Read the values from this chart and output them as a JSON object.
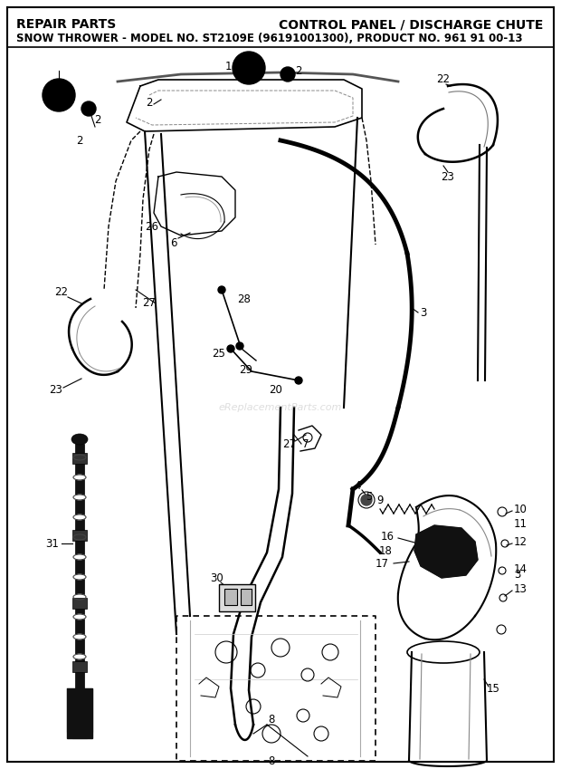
{
  "title_left": "REPAIR PARTS",
  "title_right": "CONTROL PANEL / DISCHARGE CHUTE",
  "subtitle": "SNOW THROWER - MODEL NO. ST2109E (96191001300), PRODUCT NO. 961 91 00-13",
  "watermark": "eReplacementParts.com",
  "bg_color": "#ffffff",
  "fig_width": 6.2,
  "fig_height": 8.49,
  "dpi": 100
}
